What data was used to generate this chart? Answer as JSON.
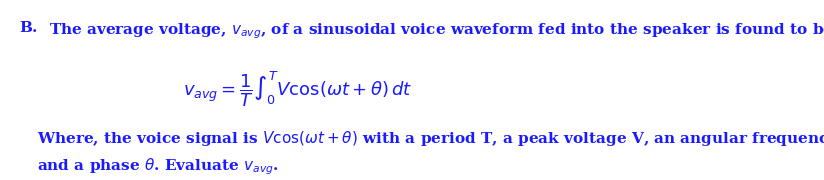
{
  "background_color": "#ffffff",
  "text_color": "#1a1aff",
  "label_B": "B.",
  "line1": "The average voltage, $v_{avg}$, of a sinusoidal voice waveform fed into the speaker is found to be :",
  "formula": "$v_{avg} = \\dfrac{1}{T}\\int_0^T V\\cos(\\omega t + \\theta)\\,dt$",
  "line3": "Where, the voice signal is $V\\cos(\\omega t + \\theta)$ with a period T, a peak voltage V, an angular frequency $\\omega$ ,",
  "line4": "and a phase $\\theta$. Evaluate $v_{avg}$.",
  "fig_width": 8.24,
  "fig_height": 1.8,
  "dpi": 100
}
